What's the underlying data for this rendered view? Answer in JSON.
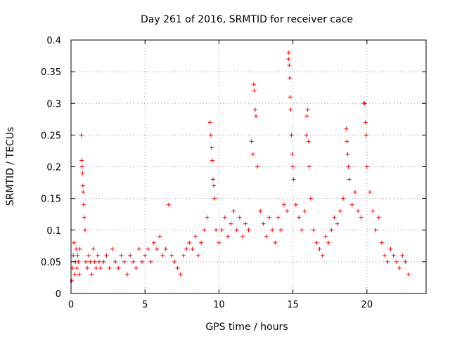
{
  "chart_data": {
    "type": "scatter",
    "title": "Day 261 of 2016, SRMTID for receiver cace",
    "xlabel": "GPS time / hours",
    "ylabel": "SRMTID / TECUs",
    "xlim": [
      0,
      24
    ],
    "ylim": [
      0,
      0.4
    ],
    "xticks": [
      0,
      5,
      10,
      15,
      20
    ],
    "xtick_labels": [
      "0",
      "5",
      "10",
      "15",
      "20"
    ],
    "yticks": [
      0,
      0.05,
      0.1,
      0.15,
      0.2,
      0.25,
      0.3,
      0.35,
      0.4
    ],
    "ytick_labels": [
      "0",
      "0.05",
      "0.1",
      "0.15",
      "0.2",
      "0.25",
      "0.3",
      "0.35",
      "0.4"
    ],
    "grid": true,
    "marker": "plus",
    "color": "#ff0000",
    "series": [
      {
        "name": "SRMTID",
        "points": [
          [
            0.05,
            0.02
          ],
          [
            0.1,
            0.04
          ],
          [
            0.15,
            0.06
          ],
          [
            0.2,
            0.08
          ],
          [
            0.25,
            0.03
          ],
          [
            0.3,
            0.05
          ],
          [
            0.35,
            0.07
          ],
          [
            0.4,
            0.04
          ],
          [
            0.45,
            0.06
          ],
          [
            0.5,
            0.05
          ],
          [
            0.55,
            0.03
          ],
          [
            0.6,
            0.07
          ],
          [
            0.7,
            0.25
          ],
          [
            0.72,
            0.21
          ],
          [
            0.75,
            0.2
          ],
          [
            0.78,
            0.19
          ],
          [
            0.8,
            0.17
          ],
          [
            0.82,
            0.16
          ],
          [
            0.85,
            0.14
          ],
          [
            0.9,
            0.12
          ],
          [
            0.95,
            0.1
          ],
          [
            1.0,
            0.05
          ],
          [
            1.1,
            0.04
          ],
          [
            1.2,
            0.06
          ],
          [
            1.3,
            0.05
          ],
          [
            1.4,
            0.03
          ],
          [
            1.5,
            0.07
          ],
          [
            1.6,
            0.05
          ],
          [
            1.7,
            0.04
          ],
          [
            1.8,
            0.06
          ],
          [
            1.9,
            0.05
          ],
          [
            2.0,
            0.04
          ],
          [
            2.2,
            0.05
          ],
          [
            2.4,
            0.06
          ],
          [
            2.6,
            0.04
          ],
          [
            2.8,
            0.07
          ],
          [
            3.0,
            0.05
          ],
          [
            3.2,
            0.04
          ],
          [
            3.4,
            0.06
          ],
          [
            3.6,
            0.05
          ],
          [
            3.8,
            0.03
          ],
          [
            4.0,
            0.06
          ],
          [
            4.2,
            0.05
          ],
          [
            4.4,
            0.04
          ],
          [
            4.6,
            0.07
          ],
          [
            4.8,
            0.05
          ],
          [
            5.0,
            0.06
          ],
          [
            5.2,
            0.07
          ],
          [
            5.4,
            0.05
          ],
          [
            5.6,
            0.08
          ],
          [
            5.8,
            0.07
          ],
          [
            6.0,
            0.09
          ],
          [
            6.2,
            0.06
          ],
          [
            6.4,
            0.07
          ],
          [
            6.6,
            0.14
          ],
          [
            6.8,
            0.06
          ],
          [
            7.0,
            0.05
          ],
          [
            7.2,
            0.04
          ],
          [
            7.4,
            0.03
          ],
          [
            7.6,
            0.06
          ],
          [
            7.8,
            0.07
          ],
          [
            8.0,
            0.08
          ],
          [
            8.2,
            0.07
          ],
          [
            8.4,
            0.09
          ],
          [
            8.6,
            0.06
          ],
          [
            8.8,
            0.08
          ],
          [
            9.0,
            0.1
          ],
          [
            9.2,
            0.12
          ],
          [
            9.4,
            0.27
          ],
          [
            9.45,
            0.25
          ],
          [
            9.5,
            0.23
          ],
          [
            9.55,
            0.21
          ],
          [
            9.6,
            0.18
          ],
          [
            9.65,
            0.17
          ],
          [
            9.7,
            0.15
          ],
          [
            9.8,
            0.1
          ],
          [
            10.0,
            0.08
          ],
          [
            10.2,
            0.1
          ],
          [
            10.4,
            0.12
          ],
          [
            10.6,
            0.09
          ],
          [
            10.8,
            0.11
          ],
          [
            11.0,
            0.13
          ],
          [
            11.2,
            0.1
          ],
          [
            11.4,
            0.12
          ],
          [
            11.6,
            0.09
          ],
          [
            11.8,
            0.11
          ],
          [
            12.0,
            0.1
          ],
          [
            12.2,
            0.24
          ],
          [
            12.3,
            0.22
          ],
          [
            12.35,
            0.33
          ],
          [
            12.4,
            0.32
          ],
          [
            12.45,
            0.29
          ],
          [
            12.5,
            0.28
          ],
          [
            12.6,
            0.2
          ],
          [
            12.8,
            0.13
          ],
          [
            13.0,
            0.11
          ],
          [
            13.2,
            0.09
          ],
          [
            13.4,
            0.12
          ],
          [
            13.6,
            0.1
          ],
          [
            13.8,
            0.08
          ],
          [
            14.0,
            0.12
          ],
          [
            14.2,
            0.1
          ],
          [
            14.4,
            0.14
          ],
          [
            14.6,
            0.13
          ],
          [
            14.7,
            0.37
          ],
          [
            14.72,
            0.38
          ],
          [
            14.75,
            0.36
          ],
          [
            14.78,
            0.34
          ],
          [
            14.8,
            0.31
          ],
          [
            14.85,
            0.29
          ],
          [
            14.9,
            0.25
          ],
          [
            14.95,
            0.22
          ],
          [
            15.0,
            0.2
          ],
          [
            15.05,
            0.18
          ],
          [
            15.2,
            0.14
          ],
          [
            15.4,
            0.12
          ],
          [
            15.6,
            0.1
          ],
          [
            15.8,
            0.13
          ],
          [
            15.9,
            0.25
          ],
          [
            15.95,
            0.28
          ],
          [
            16.0,
            0.29
          ],
          [
            16.05,
            0.24
          ],
          [
            16.1,
            0.2
          ],
          [
            16.2,
            0.15
          ],
          [
            16.4,
            0.1
          ],
          [
            16.6,
            0.08
          ],
          [
            16.8,
            0.07
          ],
          [
            17.0,
            0.06
          ],
          [
            17.2,
            0.09
          ],
          [
            17.4,
            0.08
          ],
          [
            17.6,
            0.1
          ],
          [
            17.8,
            0.12
          ],
          [
            18.0,
            0.11
          ],
          [
            18.2,
            0.13
          ],
          [
            18.4,
            0.15
          ],
          [
            18.6,
            0.26
          ],
          [
            18.65,
            0.24
          ],
          [
            18.7,
            0.22
          ],
          [
            18.75,
            0.2
          ],
          [
            18.8,
            0.18
          ],
          [
            19.0,
            0.14
          ],
          [
            19.2,
            0.16
          ],
          [
            19.4,
            0.13
          ],
          [
            19.6,
            0.12
          ],
          [
            19.8,
            0.3
          ],
          [
            19.85,
            0.3
          ],
          [
            19.9,
            0.27
          ],
          [
            19.95,
            0.25
          ],
          [
            20.0,
            0.2
          ],
          [
            20.2,
            0.16
          ],
          [
            20.4,
            0.13
          ],
          [
            20.6,
            0.1
          ],
          [
            20.8,
            0.12
          ],
          [
            21.0,
            0.08
          ],
          [
            21.2,
            0.06
          ],
          [
            21.4,
            0.05
          ],
          [
            21.6,
            0.07
          ],
          [
            21.8,
            0.06
          ],
          [
            22.0,
            0.05
          ],
          [
            22.2,
            0.04
          ],
          [
            22.4,
            0.06
          ],
          [
            22.6,
            0.05
          ],
          [
            22.8,
            0.03
          ]
        ]
      }
    ]
  }
}
